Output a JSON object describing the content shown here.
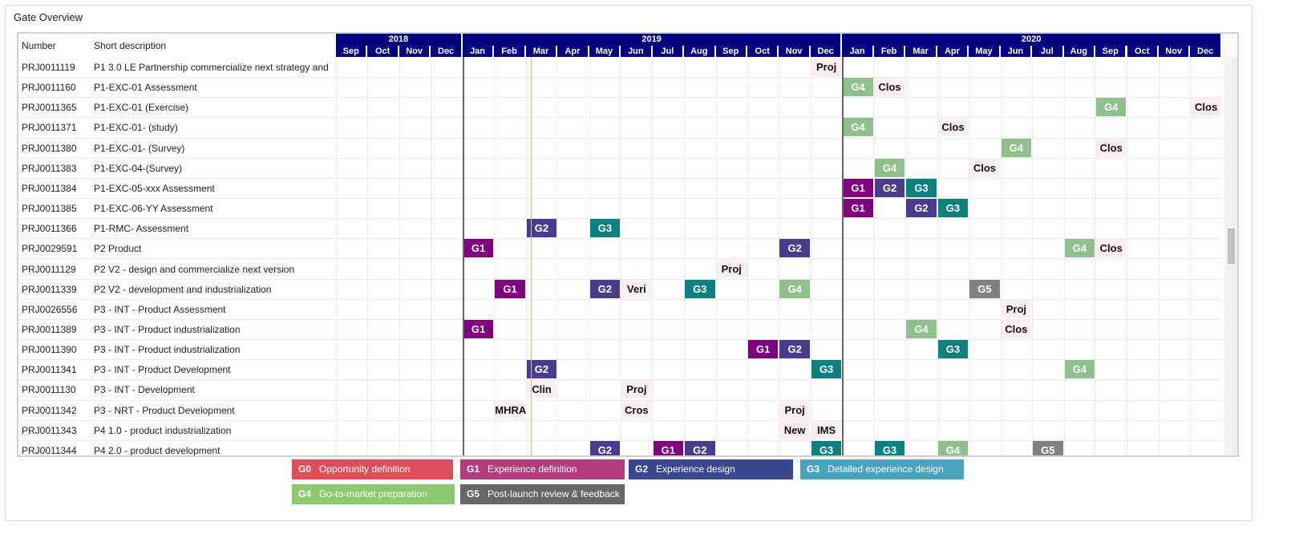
{
  "title": "Gate Overview",
  "columns": {
    "number": "Number",
    "description": "Short description"
  },
  "years": [
    {
      "label": "2018",
      "months": 4
    },
    {
      "label": "2019",
      "months": 12
    },
    {
      "label": "2020",
      "months": 12
    }
  ],
  "months": [
    "Sep",
    "Oct",
    "Nov",
    "Dec",
    "Jan",
    "Feb",
    "Mar",
    "Apr",
    "May",
    "Jun",
    "Jul",
    "Aug",
    "Sep",
    "Oct",
    "Nov",
    "Dec",
    "Jan",
    "Feb",
    "Mar",
    "Apr",
    "May",
    "Jun",
    "Jul",
    "Aug",
    "Sep",
    "Oct",
    "Nov",
    "Dec"
  ],
  "gate_colors": {
    "G1": "#800080",
    "G2": "#4b3b8c",
    "G3": "#0d8080",
    "G4": "#8fbf8a",
    "G5": "#808080"
  },
  "rows": [
    {
      "number": "PRJ0011119",
      "description": "P1 3.0 LE Partnership commercialize next  strategy and",
      "items": [
        {
          "m": 15,
          "label": "Proj"
        }
      ]
    },
    {
      "number": "PRJ0011160",
      "description": "P1-EXC-01 Assessment",
      "items": [
        {
          "m": 16,
          "label": "G4"
        },
        {
          "m": 17,
          "label": "Clos"
        }
      ]
    },
    {
      "number": "PRJ0011365",
      "description": "P1-EXC-01 (Exercise)",
      "items": [
        {
          "m": 24,
          "label": "G4"
        },
        {
          "m": 27,
          "label": "Clos"
        }
      ]
    },
    {
      "number": "PRJ0011371",
      "description": "P1-EXC-01- (study)",
      "items": [
        {
          "m": 16,
          "label": "G4"
        },
        {
          "m": 19,
          "label": "Clos"
        }
      ]
    },
    {
      "number": "PRJ0011380",
      "description": "P1-EXC-01- (Survey)",
      "items": [
        {
          "m": 21,
          "label": "G4"
        },
        {
          "m": 24,
          "label": "Clos"
        }
      ]
    },
    {
      "number": "PRJ0011383",
      "description": "P1-EXC-04-(Survey)",
      "items": [
        {
          "m": 17,
          "label": "G4"
        },
        {
          "m": 20,
          "label": "Clos"
        }
      ]
    },
    {
      "number": "PRJ0011384",
      "description": "P1-EXC-05-xxx  Assessment",
      "items": [
        {
          "m": 16,
          "label": "G1"
        },
        {
          "m": 17,
          "label": "G2"
        },
        {
          "m": 18,
          "label": "G3"
        }
      ]
    },
    {
      "number": "PRJ0011385",
      "description": "P1-EXC-06-YY  Assessment",
      "items": [
        {
          "m": 16,
          "label": "G1"
        },
        {
          "m": 18,
          "label": "G2"
        },
        {
          "m": 19,
          "label": "G3"
        }
      ]
    },
    {
      "number": "PRJ0011366",
      "description": "P1-RMC- Assessment",
      "items": [
        {
          "m": 6,
          "label": "G2"
        },
        {
          "m": 8,
          "label": "G3"
        }
      ]
    },
    {
      "number": "PRJ0029591",
      "description": "P2 Product",
      "items": [
        {
          "m": 4,
          "label": "G1"
        },
        {
          "m": 14,
          "label": "G2"
        },
        {
          "m": 23,
          "label": "G4"
        },
        {
          "m": 24,
          "label": "Clos"
        }
      ]
    },
    {
      "number": "PRJ0011129",
      "description": "P2 V2 - design and commercialize next version",
      "items": [
        {
          "m": 12,
          "label": "Proj"
        }
      ]
    },
    {
      "number": "PRJ0011339",
      "description": "P2 V2 - development and industrialization",
      "items": [
        {
          "m": 5,
          "label": "G1"
        },
        {
          "m": 8,
          "label": "G2"
        },
        {
          "m": 9,
          "label": "Veri"
        },
        {
          "m": 11,
          "label": "G3"
        },
        {
          "m": 14,
          "label": "G4"
        },
        {
          "m": 20,
          "label": "G5"
        }
      ]
    },
    {
      "number": "PRJ0026556",
      "description": "P3 - INT  - Product Assessment",
      "items": [
        {
          "m": 21,
          "label": "Proj"
        }
      ]
    },
    {
      "number": "PRJ0011389",
      "description": "P3 - INT  - Product industrialization",
      "items": [
        {
          "m": 4,
          "label": "G1"
        },
        {
          "m": 18,
          "label": "G4"
        },
        {
          "m": 21,
          "label": "Clos"
        }
      ]
    },
    {
      "number": "PRJ0011390",
      "description": "P3 - INT  - Product industrialization",
      "items": [
        {
          "m": 13,
          "label": "G1"
        },
        {
          "m": 14,
          "label": "G2"
        },
        {
          "m": 19,
          "label": "G3"
        }
      ]
    },
    {
      "number": "PRJ0011341",
      "description": "P3 - INT  - Product Development",
      "items": [
        {
          "m": 6,
          "label": "G2"
        },
        {
          "m": 15,
          "label": "G3"
        },
        {
          "m": 23,
          "label": "G4"
        }
      ]
    },
    {
      "number": "PRJ0011130",
      "description": "P3 - INT  - Development",
      "items": [
        {
          "m": 6,
          "label": "Clin"
        },
        {
          "m": 9,
          "label": "Proj"
        }
      ]
    },
    {
      "number": "PRJ0011342",
      "description": "P3 - NRT - Product Development",
      "items": [
        {
          "m": 5,
          "label": "MHRA"
        },
        {
          "m": 9,
          "label": "Cros"
        },
        {
          "m": 14,
          "label": "Proj"
        }
      ]
    },
    {
      "number": "PRJ0011343",
      "description": "P4 1.0 - product industrialization",
      "items": [
        {
          "m": 14,
          "label": "New"
        },
        {
          "m": 15,
          "label": "IMS"
        }
      ]
    },
    {
      "number": "PRJ0011344",
      "description": "P4 2.0 - product development",
      "items": [
        {
          "m": 8,
          "label": "G2"
        },
        {
          "m": 10,
          "label": "G1"
        },
        {
          "m": 11,
          "label": "G2"
        },
        {
          "m": 15,
          "label": "G3"
        },
        {
          "m": 17,
          "label": "G3"
        },
        {
          "m": 19,
          "label": "G4"
        },
        {
          "m": 22,
          "label": "G5"
        }
      ]
    }
  ],
  "legend": [
    {
      "code": "G0",
      "label": "Opportunity definition",
      "color": "#dc4f5a"
    },
    {
      "code": "G1",
      "label": "Experience definition",
      "color": "#b23c7c"
    },
    {
      "code": "G2",
      "label": "Experience design",
      "color": "#3a4790"
    },
    {
      "code": "G3",
      "label": "Detailed experience design",
      "color": "#4ba2bf"
    },
    {
      "code": "G4",
      "label": "Go-to-market preparation",
      "color": "#8cc96e"
    },
    {
      "code": "G5",
      "label": "Post-launch review & feedback",
      "color": "#666666"
    }
  ]
}
